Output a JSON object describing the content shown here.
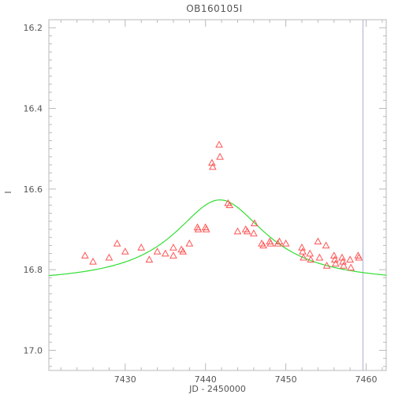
{
  "chart_data": {
    "type": "scatter",
    "title": "OB160105I",
    "xlabel": "JD - 2450000",
    "ylabel": "I",
    "xlim": [
      7420.5,
      7462.5
    ],
    "ylim": [
      17.05,
      16.18
    ],
    "y_inverted": true,
    "x_ticks": [
      7430,
      7440,
      7450,
      7460
    ],
    "y_ticks": [
      16.2,
      16.4,
      16.6,
      16.8,
      17.0
    ],
    "y_tick_labels": [
      "16.2",
      "16.4",
      "16.6",
      "16.8",
      "17.0"
    ],
    "grid": false,
    "vertical_marker_x": 7459.6,
    "colors": {
      "points": "#ff5555",
      "model": "#33dd33",
      "axes": "#b9b9b9",
      "marker": "#aab0d0"
    },
    "points": {
      "name": "data",
      "marker": "open-triangle",
      "x": [
        7425.0,
        7426.0,
        7428.0,
        7429.0,
        7430.0,
        7432.0,
        7433.0,
        7434.0,
        7435.0,
        7436.0,
        7436.0,
        7437.0,
        7437.2,
        7438.0,
        7439.0,
        7439.1,
        7440.0,
        7440.1,
        7440.8,
        7440.9,
        7441.7,
        7441.8,
        7442.8,
        7443.0,
        7444.0,
        7445.0,
        7445.2,
        7446.0,
        7446.1,
        7447.0,
        7447.2,
        7448.0,
        7448.1,
        7449.0,
        7449.2,
        7450.0,
        7452.0,
        7452.1,
        7452.2,
        7453.0,
        7453.1,
        7454.0,
        7454.2,
        7455.0,
        7455.1,
        7456.0,
        7456.1,
        7456.2,
        7457.0,
        7457.1,
        7457.2,
        7458.0,
        7458.1,
        7459.0,
        7459.1
      ],
      "y": [
        16.765,
        16.78,
        16.77,
        16.735,
        16.755,
        16.745,
        16.775,
        16.755,
        16.76,
        16.745,
        16.765,
        16.75,
        16.755,
        16.735,
        16.695,
        16.7,
        16.695,
        16.7,
        16.535,
        16.545,
        16.49,
        16.52,
        16.635,
        16.64,
        16.705,
        16.7,
        16.705,
        16.71,
        16.685,
        16.735,
        16.74,
        16.73,
        16.735,
        16.735,
        16.73,
        16.735,
        16.745,
        16.755,
        16.77,
        16.76,
        16.775,
        16.73,
        16.77,
        16.74,
        16.79,
        16.765,
        16.775,
        16.785,
        16.77,
        16.78,
        16.79,
        16.775,
        16.795,
        16.765,
        16.77
      ]
    },
    "model": {
      "name": "model",
      "peak_x": 7441.8,
      "peak_y": 16.627,
      "baseline_y": 16.835,
      "width_days": 7.0
    }
  }
}
